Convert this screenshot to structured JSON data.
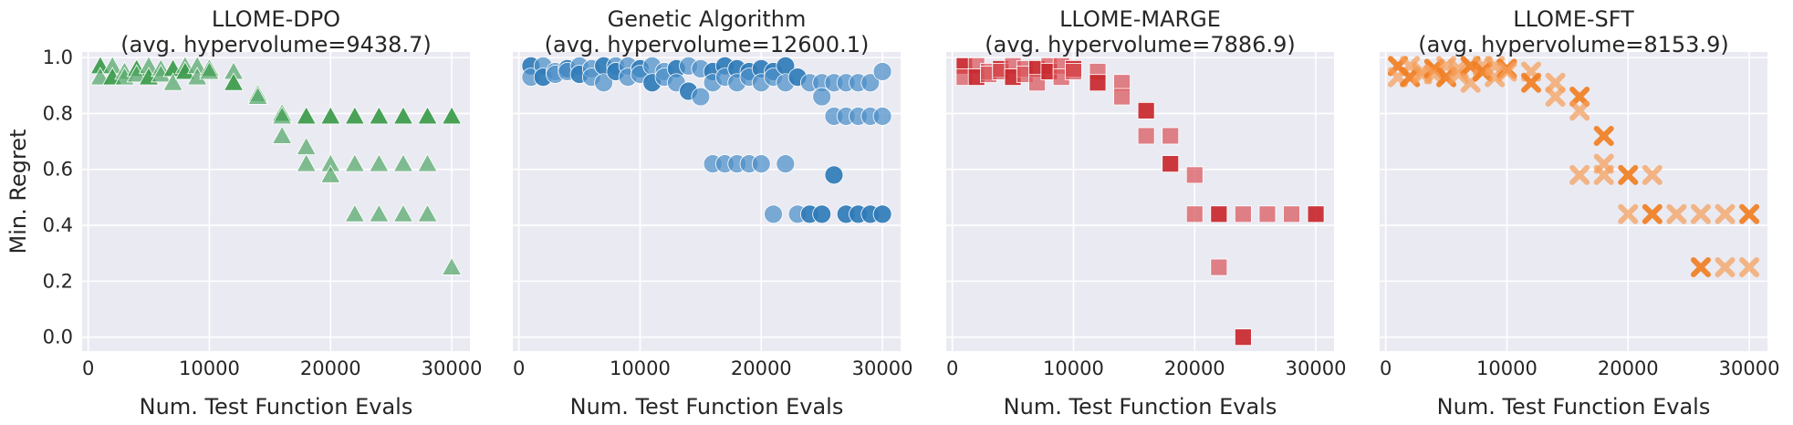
{
  "chart_data": [
    {
      "type": "scatter",
      "title_line1": "LLOME-DPO",
      "title_line2": "(avg. hypervolume=9438.7)",
      "xlabel": "Num. Test Function Evals",
      "ylabel": "Min. Regret",
      "marker": "triangle",
      "color": "#55a868",
      "color_strong": "#3a9a4a",
      "xlim": [
        -500,
        31500
      ],
      "ylim": [
        -0.05,
        1.02
      ],
      "xticks": [
        0,
        10000,
        20000,
        30000
      ],
      "xtick_labels": [
        "0",
        "10000",
        "20000",
        "30000"
      ],
      "yticks": [
        0.0,
        0.2,
        0.4,
        0.6,
        0.8,
        1.0
      ],
      "ytick_labels": [
        "0.0",
        "0.2",
        "0.4",
        "0.6",
        "0.8",
        "1.0"
      ],
      "points": [
        [
          1000,
          0.97
        ],
        [
          1000,
          0.93
        ],
        [
          2000,
          0.97
        ],
        [
          2000,
          0.93
        ],
        [
          3000,
          0.95
        ],
        [
          3000,
          0.93
        ],
        [
          4000,
          0.96
        ],
        [
          4000,
          0.94
        ],
        [
          5000,
          0.97
        ],
        [
          5000,
          0.93
        ],
        [
          6000,
          0.96
        ],
        [
          6000,
          0.94
        ],
        [
          7000,
          0.96
        ],
        [
          7000,
          0.91
        ],
        [
          8000,
          0.97
        ],
        [
          8000,
          0.95
        ],
        [
          9000,
          0.97
        ],
        [
          9000,
          0.93
        ],
        [
          10000,
          0.96
        ],
        [
          10000,
          0.95
        ],
        [
          12000,
          0.95
        ],
        [
          12000,
          0.91
        ],
        [
          14000,
          0.87
        ],
        [
          14000,
          0.86
        ],
        [
          16000,
          0.8
        ],
        [
          16000,
          0.79
        ],
        [
          16000,
          0.72
        ],
        [
          18000,
          0.79
        ],
        [
          18000,
          0.68
        ],
        [
          18000,
          0.62
        ],
        [
          20000,
          0.79
        ],
        [
          20000,
          0.62
        ],
        [
          20000,
          0.58
        ],
        [
          22000,
          0.79
        ],
        [
          22000,
          0.62
        ],
        [
          22000,
          0.44
        ],
        [
          24000,
          0.79
        ],
        [
          24000,
          0.62
        ],
        [
          24000,
          0.44
        ],
        [
          26000,
          0.79
        ],
        [
          26000,
          0.62
        ],
        [
          26000,
          0.44
        ],
        [
          28000,
          0.79
        ],
        [
          28000,
          0.62
        ],
        [
          28000,
          0.44
        ],
        [
          30000,
          0.79
        ],
        [
          30000,
          0.25
        ]
      ]
    },
    {
      "type": "scatter",
      "title_line1": "Genetic Algorithm",
      "title_line2": "(avg. hypervolume=12600.1)",
      "xlabel": "Num. Test Function Evals",
      "ylabel": "",
      "marker": "circle",
      "color": "#4c8fc8",
      "color_strong": "#2f7bb8",
      "xlim": [
        -500,
        31500
      ],
      "ylim": [
        -0.05,
        1.02
      ],
      "xticks": [
        0,
        10000,
        20000,
        30000
      ],
      "xtick_labels": [
        "0",
        "10000",
        "20000",
        "30000"
      ],
      "yticks": [
        0.0,
        0.2,
        0.4,
        0.6,
        0.8,
        1.0
      ],
      "ytick_labels": [],
      "points": [
        [
          1000,
          0.97
        ],
        [
          1000,
          0.93
        ],
        [
          2000,
          0.97
        ],
        [
          2000,
          0.93
        ],
        [
          3000,
          0.95
        ],
        [
          3000,
          0.94
        ],
        [
          4000,
          0.96
        ],
        [
          4000,
          0.95
        ],
        [
          5000,
          0.97
        ],
        [
          5000,
          0.94
        ],
        [
          6000,
          0.96
        ],
        [
          6000,
          0.93
        ],
        [
          7000,
          0.97
        ],
        [
          7000,
          0.91
        ],
        [
          8000,
          0.97
        ],
        [
          8000,
          0.95
        ],
        [
          9000,
          0.97
        ],
        [
          9000,
          0.93
        ],
        [
          10000,
          0.96
        ],
        [
          10000,
          0.94
        ],
        [
          11000,
          0.97
        ],
        [
          11000,
          0.91
        ],
        [
          12000,
          0.95
        ],
        [
          12000,
          0.93
        ],
        [
          13000,
          0.96
        ],
        [
          13000,
          0.91
        ],
        [
          14000,
          0.97
        ],
        [
          14000,
          0.88
        ],
        [
          15000,
          0.96
        ],
        [
          15000,
          0.86
        ],
        [
          16000,
          0.95
        ],
        [
          16000,
          0.91
        ],
        [
          16000,
          0.62
        ],
        [
          17000,
          0.97
        ],
        [
          17000,
          0.93
        ],
        [
          17000,
          0.62
        ],
        [
          18000,
          0.96
        ],
        [
          18000,
          0.91
        ],
        [
          18000,
          0.62
        ],
        [
          19000,
          0.95
        ],
        [
          19000,
          0.93
        ],
        [
          19000,
          0.62
        ],
        [
          20000,
          0.96
        ],
        [
          20000,
          0.91
        ],
        [
          20000,
          0.62
        ],
        [
          21000,
          0.95
        ],
        [
          21000,
          0.93
        ],
        [
          21000,
          0.44
        ],
        [
          22000,
          0.97
        ],
        [
          22000,
          0.91
        ],
        [
          22000,
          0.62
        ],
        [
          23000,
          0.93
        ],
        [
          23000,
          0.44
        ],
        [
          24000,
          0.91
        ],
        [
          24000,
          0.44
        ],
        [
          25000,
          0.91
        ],
        [
          25000,
          0.86
        ],
        [
          25000,
          0.44
        ],
        [
          26000,
          0.91
        ],
        [
          26000,
          0.79
        ],
        [
          26000,
          0.58
        ],
        [
          27000,
          0.91
        ],
        [
          27000,
          0.79
        ],
        [
          27000,
          0.44
        ],
        [
          28000,
          0.91
        ],
        [
          28000,
          0.79
        ],
        [
          28000,
          0.44
        ],
        [
          29000,
          0.91
        ],
        [
          29000,
          0.79
        ],
        [
          29000,
          0.44
        ],
        [
          30000,
          0.95
        ],
        [
          30000,
          0.79
        ],
        [
          30000,
          0.44
        ]
      ]
    },
    {
      "type": "scatter",
      "title_line1": "LLOME-MARGE",
      "title_line2": "(avg. hypervolume=7886.9)",
      "xlabel": "Num. Test Function Evals",
      "ylabel": "",
      "marker": "square",
      "color": "#d9545a",
      "color_strong": "#c8272d",
      "xlim": [
        -500,
        31500
      ],
      "ylim": [
        -0.05,
        1.02
      ],
      "xticks": [
        0,
        10000,
        20000,
        30000
      ],
      "xtick_labels": [
        "0",
        "10000",
        "20000",
        "30000"
      ],
      "yticks": [
        0.0,
        0.2,
        0.4,
        0.6,
        0.8,
        1.0
      ],
      "ytick_labels": [],
      "points": [
        [
          1000,
          0.97
        ],
        [
          1000,
          0.93
        ],
        [
          2000,
          0.97
        ],
        [
          2000,
          0.93
        ],
        [
          3000,
          0.95
        ],
        [
          3000,
          0.94
        ],
        [
          4000,
          0.96
        ],
        [
          4000,
          0.95
        ],
        [
          5000,
          0.97
        ],
        [
          5000,
          0.93
        ],
        [
          6000,
          0.96
        ],
        [
          6000,
          0.94
        ],
        [
          7000,
          0.96
        ],
        [
          7000,
          0.91
        ],
        [
          8000,
          0.97
        ],
        [
          8000,
          0.95
        ],
        [
          9000,
          0.97
        ],
        [
          9000,
          0.93
        ],
        [
          10000,
          0.96
        ],
        [
          10000,
          0.95
        ],
        [
          12000,
          0.95
        ],
        [
          12000,
          0.91
        ],
        [
          14000,
          0.91
        ],
        [
          14000,
          0.86
        ],
        [
          16000,
          0.81
        ],
        [
          16000,
          0.72
        ],
        [
          18000,
          0.72
        ],
        [
          18000,
          0.62
        ],
        [
          20000,
          0.58
        ],
        [
          20000,
          0.44
        ],
        [
          22000,
          0.44
        ],
        [
          22000,
          0.25
        ],
        [
          24000,
          0.44
        ],
        [
          24000,
          0.0
        ],
        [
          26000,
          0.44
        ],
        [
          28000,
          0.44
        ],
        [
          30000,
          0.44
        ]
      ]
    },
    {
      "type": "scatter",
      "title_line1": "LLOME-SFT",
      "title_line2": "(avg. hypervolume=8153.9)",
      "xlabel": "Num. Test Function Evals",
      "ylabel": "",
      "marker": "x",
      "color": "#f5a05a",
      "color_strong": "#f07e22",
      "xlim": [
        -500,
        31500
      ],
      "ylim": [
        -0.05,
        1.02
      ],
      "xticks": [
        0,
        10000,
        20000,
        30000
      ],
      "xtick_labels": [
        "0",
        "10000",
        "20000",
        "30000"
      ],
      "yticks": [
        0.0,
        0.2,
        0.4,
        0.6,
        0.8,
        1.0
      ],
      "ytick_labels": [],
      "points": [
        [
          1000,
          0.97
        ],
        [
          1000,
          0.93
        ],
        [
          2000,
          0.97
        ],
        [
          2000,
          0.93
        ],
        [
          3000,
          0.95
        ],
        [
          3000,
          0.94
        ],
        [
          4000,
          0.96
        ],
        [
          4000,
          0.94
        ],
        [
          5000,
          0.97
        ],
        [
          5000,
          0.93
        ],
        [
          6000,
          0.96
        ],
        [
          6000,
          0.94
        ],
        [
          7000,
          0.97
        ],
        [
          7000,
          0.91
        ],
        [
          8000,
          0.97
        ],
        [
          8000,
          0.95
        ],
        [
          9000,
          0.97
        ],
        [
          9000,
          0.93
        ],
        [
          10000,
          0.96
        ],
        [
          10000,
          0.95
        ],
        [
          12000,
          0.95
        ],
        [
          12000,
          0.91
        ],
        [
          14000,
          0.91
        ],
        [
          14000,
          0.86
        ],
        [
          16000,
          0.86
        ],
        [
          16000,
          0.81
        ],
        [
          16000,
          0.58
        ],
        [
          18000,
          0.72
        ],
        [
          18000,
          0.62
        ],
        [
          18000,
          0.58
        ],
        [
          20000,
          0.58
        ],
        [
          20000,
          0.44
        ],
        [
          22000,
          0.58
        ],
        [
          22000,
          0.44
        ],
        [
          24000,
          0.44
        ],
        [
          26000,
          0.44
        ],
        [
          26000,
          0.25
        ],
        [
          28000,
          0.44
        ],
        [
          28000,
          0.25
        ],
        [
          30000,
          0.44
        ],
        [
          30000,
          0.25
        ]
      ]
    }
  ]
}
